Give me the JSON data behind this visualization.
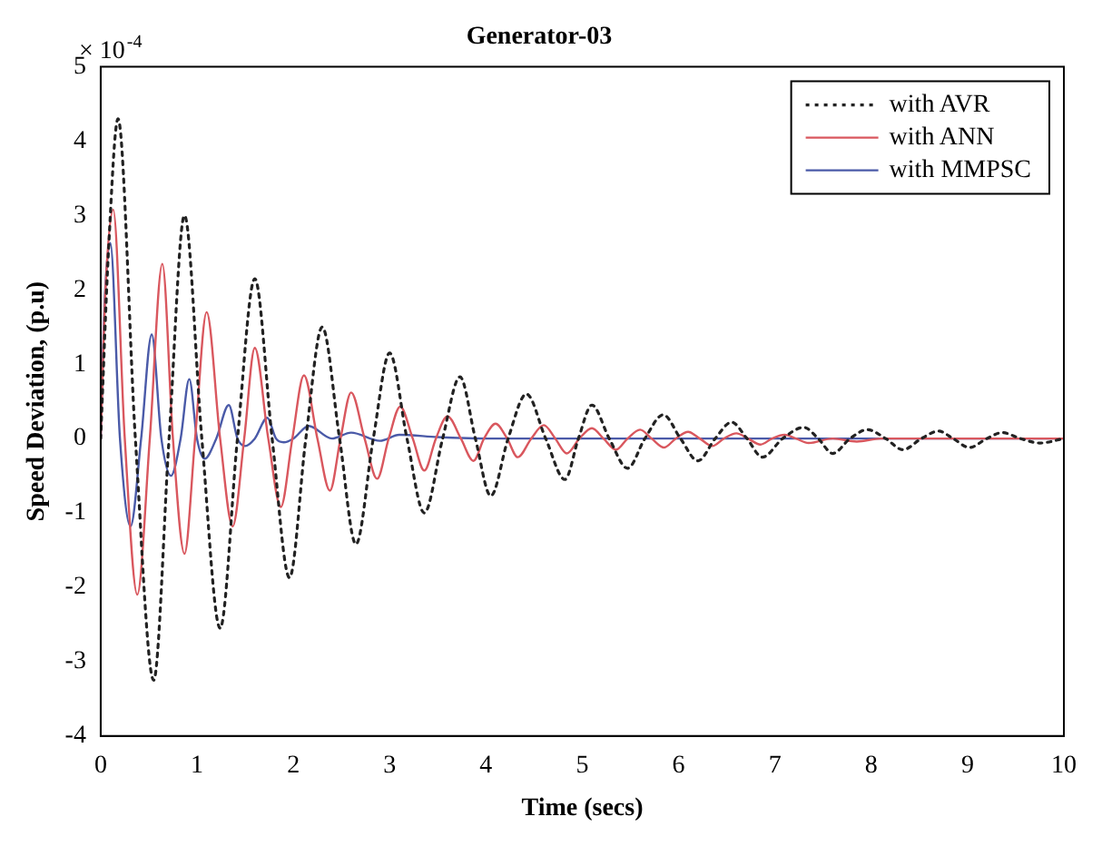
{
  "chart_data": {
    "type": "line",
    "title": "Generator-03",
    "xlabel": "Time (secs)",
    "ylabel": "Speed Deviation, (p.u)",
    "annotations": [
      "× 10$^{-4}$"
    ],
    "xlim": [
      0,
      10
    ],
    "xticks": [
      0,
      1,
      2,
      3,
      4,
      5,
      6,
      7,
      8,
      9,
      10
    ],
    "ylim": [
      -4,
      5
    ],
    "yticks": [
      -4,
      -3,
      -2,
      -1,
      0,
      1,
      2,
      3,
      4,
      5
    ],
    "grid": false,
    "legend": "top right",
    "marker": "none",
    "series": [
      {
        "name": "with AVR",
        "color": "#222222",
        "line_style": "dotted",
        "x": [
          0,
          0.08,
          0.18,
          0.36,
          0.55,
          0.71,
          0.87,
          1.05,
          1.24,
          1.42,
          1.6,
          1.78,
          1.96,
          2.13,
          2.3,
          2.48,
          2.65,
          2.83,
          3.0,
          3.18,
          3.36,
          3.55,
          3.73,
          3.89,
          4.05,
          4.23,
          4.42,
          4.62,
          4.82,
          4.96,
          5.1,
          5.28,
          5.47,
          5.65,
          5.84,
          6.02,
          6.2,
          6.38,
          6.55,
          6.71,
          6.87,
          7.08,
          7.3,
          7.45,
          7.6,
          7.78,
          7.96,
          8.15,
          8.33,
          8.52,
          8.7,
          8.85,
          9.02,
          9.2,
          9.36,
          9.55,
          9.75,
          10
        ],
        "values": [
          0,
          2.5,
          4.3,
          0,
          -3.25,
          0,
          3.0,
          0,
          -2.55,
          0,
          2.15,
          0,
          -1.87,
          0,
          1.5,
          0,
          -1.42,
          0,
          1.15,
          0,
          -1.0,
          0,
          0.83,
          0,
          -0.77,
          0,
          0.6,
          0,
          -0.55,
          0,
          0.45,
          0,
          -0.4,
          0,
          0.32,
          0,
          -0.3,
          0,
          0.22,
          0,
          -0.25,
          0,
          0.15,
          0,
          -0.2,
          0,
          0.12,
          0,
          -0.15,
          0,
          0.1,
          0,
          -0.12,
          0,
          0.08,
          0,
          -0.06,
          0
        ]
      },
      {
        "name": "with ANN",
        "color": "#d9575e",
        "line_style": "solid",
        "x": [
          0,
          0.05,
          0.13,
          0.25,
          0.38,
          0.51,
          0.64,
          0.75,
          0.87,
          0.98,
          1.1,
          1.24,
          1.37,
          1.49,
          1.6,
          1.74,
          1.87,
          1.99,
          2.11,
          2.25,
          2.38,
          2.49,
          2.6,
          2.74,
          2.87,
          2.99,
          3.11,
          3.24,
          3.36,
          3.48,
          3.6,
          3.74,
          3.87,
          3.98,
          4.1,
          4.22,
          4.33,
          4.47,
          4.6,
          4.72,
          4.84,
          4.97,
          5.1,
          5.22,
          5.35,
          5.47,
          5.6,
          5.72,
          5.85,
          5.97,
          6.1,
          6.22,
          6.35,
          6.47,
          6.6,
          6.72,
          6.85,
          6.97,
          7.1,
          7.22,
          7.35,
          7.6,
          7.85,
          8.1,
          8.5,
          10
        ],
        "values": [
          0,
          2,
          3.08,
          0,
          -2.1,
          0,
          2.35,
          0,
          -1.55,
          0,
          1.7,
          0,
          -1.18,
          0,
          1.22,
          0,
          -0.92,
          0,
          0.85,
          0,
          -0.7,
          0,
          0.62,
          0,
          -0.54,
          0,
          0.43,
          0,
          -0.43,
          0,
          0.3,
          0,
          -0.3,
          0,
          0.2,
          0,
          -0.25,
          0,
          0.18,
          0,
          -0.2,
          0,
          0.14,
          0,
          -0.15,
          0,
          0.12,
          0,
          -0.12,
          0,
          0.09,
          0,
          -0.1,
          0,
          0.07,
          0,
          -0.08,
          0,
          0.05,
          0,
          -0.06,
          0,
          -0.04,
          0,
          0,
          0
        ]
      },
      {
        "name": "with MMPSC",
        "color": "#4a5aa8",
        "line_style": "solid",
        "x": [
          0,
          0.04,
          0.1,
          0.2,
          0.31,
          0.42,
          0.53,
          0.63,
          0.73,
          0.83,
          0.92,
          1.0,
          1.08,
          1.2,
          1.33,
          1.42,
          1.5,
          1.6,
          1.73,
          1.82,
          1.9,
          2.0,
          2.16,
          2.4,
          2.6,
          2.9,
          3.1,
          3.5,
          4,
          10
        ],
        "values": [
          0,
          1.8,
          2.63,
          0,
          -1.18,
          0,
          1.4,
          0,
          -0.5,
          0,
          0.8,
          0,
          -0.27,
          0,
          0.45,
          0,
          -0.1,
          0,
          0.28,
          0,
          -0.05,
          0,
          0.17,
          0,
          0.08,
          -0.03,
          0.05,
          0.02,
          0,
          0
        ]
      }
    ]
  }
}
